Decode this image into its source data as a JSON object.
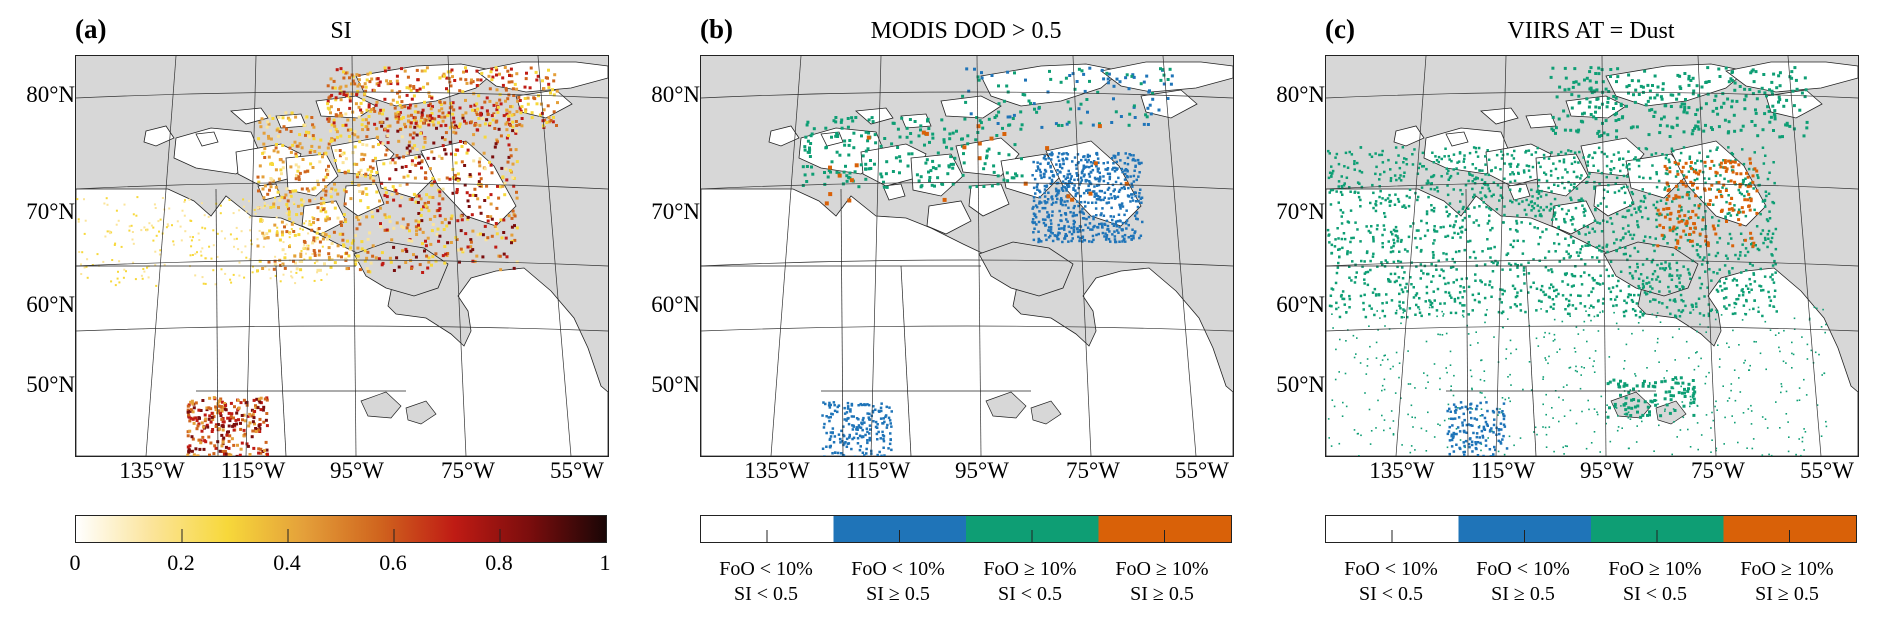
{
  "panels": [
    {
      "label": "(a)",
      "title": "SI",
      "legend": "continuous"
    },
    {
      "label": "(b)",
      "title": "MODIS DOD > 0.5",
      "legend": "categorical"
    },
    {
      "label": "(c)",
      "title": "VIIRS AT = Dust",
      "legend": "categorical"
    }
  ],
  "lat_labels": [
    "80°N",
    "70°N",
    "60°N",
    "50°N"
  ],
  "lon_labels": [
    "135°W",
    "115°W",
    "95°W",
    "75°W",
    "55°W"
  ],
  "si_colorbar": {
    "ticks": [
      "0",
      "0.2",
      "0.4",
      "0.6",
      "0.8",
      "1"
    ],
    "colors": [
      "#ffffff",
      "#fbe49a",
      "#f7d83a",
      "#e4a03a",
      "#d0651e",
      "#bf1b14",
      "#7a0d0d",
      "#1a0606"
    ]
  },
  "categories": [
    {
      "line1": "FoO < 10%",
      "line2": "SI < 0.5",
      "color": "#ffffff"
    },
    {
      "line1": "FoO < 10%",
      "line2": "SI ≥ 0.5",
      "color": "#1f74b8"
    },
    {
      "line1": "FoO ≥ 10%",
      "line2": "SI < 0.5",
      "color": "#0e9e74"
    },
    {
      "line1": "FoO ≥ 10%",
      "line2": "SI ≥ 0.5",
      "color": "#d96108"
    }
  ],
  "colors": {
    "background": "#d7d7d7",
    "land": "#ffffff",
    "border": "#222222"
  }
}
